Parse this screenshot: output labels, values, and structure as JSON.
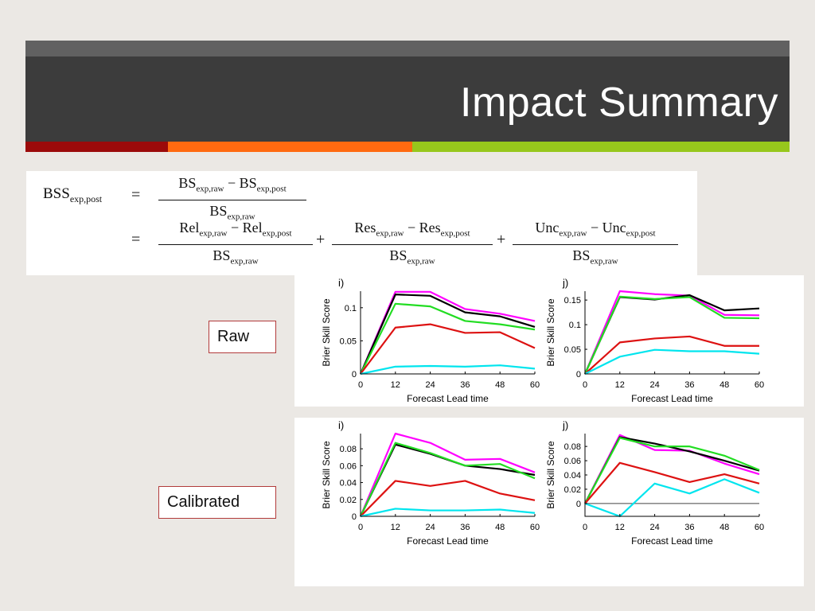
{
  "slide": {
    "title": "Impact Summary",
    "accent_colors": [
      "#9b0a0a",
      "#ff6a10",
      "#97c71c"
    ]
  },
  "formula": {
    "lhs": "BSS",
    "lhs_sub": "exp,post",
    "eq": "=",
    "plus": "+",
    "minus": "−",
    "f1_num_a": "BS",
    "f1_num_a_sub": "exp,raw",
    "f1_num_b": "BS",
    "f1_num_b_sub": "exp,post",
    "f1_den": "BS",
    "f1_den_sub": "exp,raw",
    "f2_num_a": "Rel",
    "f2_num_a_sub": "exp,raw",
    "f2_num_b": "Rel",
    "f2_num_b_sub": "exp,post",
    "f2_den": "BS",
    "f2_den_sub": "exp,raw",
    "f3_num_a": "Res",
    "f3_num_a_sub": "exp,raw",
    "f3_num_b": "Res",
    "f3_num_b_sub": "exp,post",
    "f3_den": "BS",
    "f3_den_sub": "exp,raw",
    "f4_num_a": "Unc",
    "f4_num_a_sub": "exp,raw",
    "f4_num_b": "Unc",
    "f4_num_b_sub": "exp,post",
    "f4_den": "BS",
    "f4_den_sub": "exp,raw"
  },
  "labels": {
    "raw": "Raw",
    "calibrated": "Calibrated"
  },
  "series_colors": [
    "#ff00ff",
    "#000000",
    "#22dd22",
    "#dd1111",
    "#00e5ee"
  ],
  "chart_data": [
    {
      "type": "line",
      "panel_label": "i)",
      "xlabel": "Forecast Lead time",
      "ylabel": "Brier Skill Score",
      "x": [
        0,
        12,
        24,
        36,
        48,
        60
      ],
      "xticks": [
        0,
        12,
        24,
        36,
        48,
        60
      ],
      "ylim": [
        0,
        0.125
      ],
      "yticks": [
        0,
        0.05,
        0.1
      ],
      "ytick_labels": [
        "0",
        "0.05",
        "0.1"
      ],
      "series": [
        {
          "values": [
            0,
            0.124,
            0.124,
            0.098,
            0.091,
            0.08
          ]
        },
        {
          "values": [
            0,
            0.12,
            0.118,
            0.093,
            0.087,
            0.071
          ]
        },
        {
          "values": [
            0,
            0.106,
            0.102,
            0.08,
            0.075,
            0.067
          ]
        },
        {
          "values": [
            0,
            0.07,
            0.075,
            0.062,
            0.063,
            0.039
          ]
        },
        {
          "values": [
            0,
            0.011,
            0.012,
            0.011,
            0.013,
            0.008
          ]
        }
      ]
    },
    {
      "type": "line",
      "panel_label": "j)",
      "xlabel": "Forecast Lead time",
      "ylabel": "Brier Skill Score",
      "x": [
        0,
        12,
        24,
        36,
        48,
        60
      ],
      "xticks": [
        0,
        12,
        24,
        36,
        48,
        60
      ],
      "ylim": [
        0,
        0.168
      ],
      "yticks": [
        0,
        0.05,
        0.1,
        0.15
      ],
      "ytick_labels": [
        "0",
        "0.05",
        "0.1",
        "0.15"
      ],
      "series": [
        {
          "values": [
            0,
            0.168,
            0.162,
            0.159,
            0.12,
            0.119
          ]
        },
        {
          "values": [
            0,
            0.156,
            0.151,
            0.16,
            0.129,
            0.133
          ]
        },
        {
          "values": [
            0,
            0.157,
            0.152,
            0.156,
            0.114,
            0.113
          ]
        },
        {
          "values": [
            0,
            0.064,
            0.072,
            0.076,
            0.057,
            0.057
          ]
        },
        {
          "values": [
            0,
            0.035,
            0.049,
            0.046,
            0.046,
            0.041
          ]
        }
      ]
    },
    {
      "type": "line",
      "panel_label": "i)",
      "xlabel": "Forecast Lead time",
      "ylabel": "Brier Skill Score",
      "x": [
        0,
        12,
        24,
        36,
        48,
        60
      ],
      "xticks": [
        0,
        12,
        24,
        36,
        48,
        60
      ],
      "ylim": [
        0,
        0.098
      ],
      "yticks": [
        0,
        0.02,
        0.04,
        0.06,
        0.08
      ],
      "ytick_labels": [
        "0",
        "0.02",
        "0.04",
        "0.06",
        "0.08"
      ],
      "series": [
        {
          "values": [
            0,
            0.098,
            0.087,
            0.067,
            0.068,
            0.052
          ]
        },
        {
          "values": [
            0,
            0.085,
            0.074,
            0.06,
            0.056,
            0.049
          ]
        },
        {
          "values": [
            0,
            0.087,
            0.075,
            0.06,
            0.062,
            0.045
          ]
        },
        {
          "values": [
            0,
            0.042,
            0.036,
            0.042,
            0.027,
            0.019
          ]
        },
        {
          "values": [
            0,
            0.009,
            0.007,
            0.007,
            0.008,
            0.004
          ]
        }
      ]
    },
    {
      "type": "line",
      "panel_label": "j)",
      "xlabel": "Forecast Lead time",
      "ylabel": "Brier Skill Score",
      "x": [
        0,
        12,
        24,
        36,
        48,
        60
      ],
      "xticks": [
        0,
        12,
        24,
        36,
        48,
        60
      ],
      "ylim": [
        -0.018,
        0.098
      ],
      "yticks": [
        0,
        0.02,
        0.04,
        0.06,
        0.08
      ],
      "ytick_labels": [
        "0",
        "0.02",
        "0.04",
        "0.06",
        "0.08"
      ],
      "zero_line": true,
      "series": [
        {
          "values": [
            0,
            0.096,
            0.075,
            0.074,
            0.056,
            0.041
          ]
        },
        {
          "values": [
            0,
            0.093,
            0.084,
            0.073,
            0.06,
            0.046
          ]
        },
        {
          "values": [
            0,
            0.092,
            0.08,
            0.08,
            0.067,
            0.047
          ]
        },
        {
          "values": [
            0,
            0.057,
            0.044,
            0.03,
            0.041,
            0.028
          ]
        },
        {
          "values": [
            0,
            -0.018,
            0.028,
            0.014,
            0.034,
            0.015
          ]
        }
      ]
    }
  ]
}
